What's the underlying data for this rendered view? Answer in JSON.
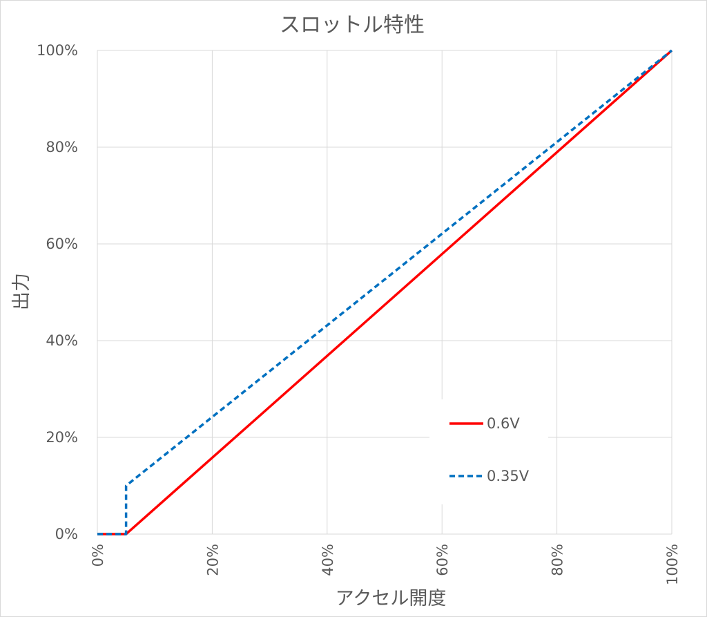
{
  "chart_data": {
    "type": "line",
    "title": "スロットル特性",
    "xlabel": "アクセル開度",
    "ylabel": "出力",
    "xlim": [
      0,
      100
    ],
    "ylim": [
      0,
      100
    ],
    "x_ticks": [
      "0%",
      "20%",
      "40%",
      "60%",
      "80%",
      "100%"
    ],
    "y_ticks": [
      "0%",
      "20%",
      "40%",
      "60%",
      "80%",
      "100%"
    ],
    "grid": true,
    "legend_position": "right",
    "series": [
      {
        "name": "0.6V",
        "color": "#ff0000",
        "dash": "solid",
        "points": [
          [
            0,
            0
          ],
          [
            5,
            0
          ],
          [
            100,
            100
          ]
        ]
      },
      {
        "name": "0.35V",
        "color": "#0070c0",
        "dash": "dashed",
        "points": [
          [
            0,
            0
          ],
          [
            5,
            0
          ],
          [
            5,
            10
          ],
          [
            100,
            100
          ]
        ]
      }
    ]
  }
}
